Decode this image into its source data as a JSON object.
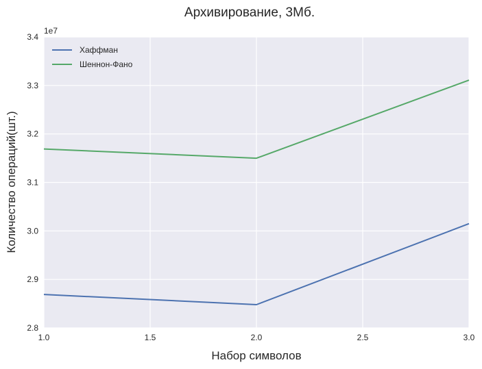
{
  "chart_data": {
    "type": "line",
    "title": "Архивирование, 3Мб.",
    "xlabel": "Набор символов",
    "ylabel": "Количество операций(шт.)",
    "y_offset_label": "1e7",
    "x": [
      1,
      2,
      3
    ],
    "series": [
      {
        "name": "Хаффман",
        "color": "#4c72b0",
        "values": [
          28.69,
          28.48,
          30.15
        ]
      },
      {
        "name": "Шеннон-Фано",
        "color": "#55a868",
        "values": [
          31.69,
          31.5,
          33.11
        ]
      }
    ],
    "xlim": [
      1.0,
      3.0
    ],
    "ylim": [
      28.0,
      34.0
    ],
    "x_ticks": [
      "1.0",
      "1.5",
      "2.0",
      "2.5",
      "3.0"
    ],
    "y_ticks": [
      "2.8",
      "2.9",
      "3.0",
      "3.1",
      "3.2",
      "3.3",
      "3.4"
    ],
    "grid": true,
    "legend_position": "top-left",
    "background_color": "#eaeaf2",
    "grid_color": "#ffffff"
  }
}
